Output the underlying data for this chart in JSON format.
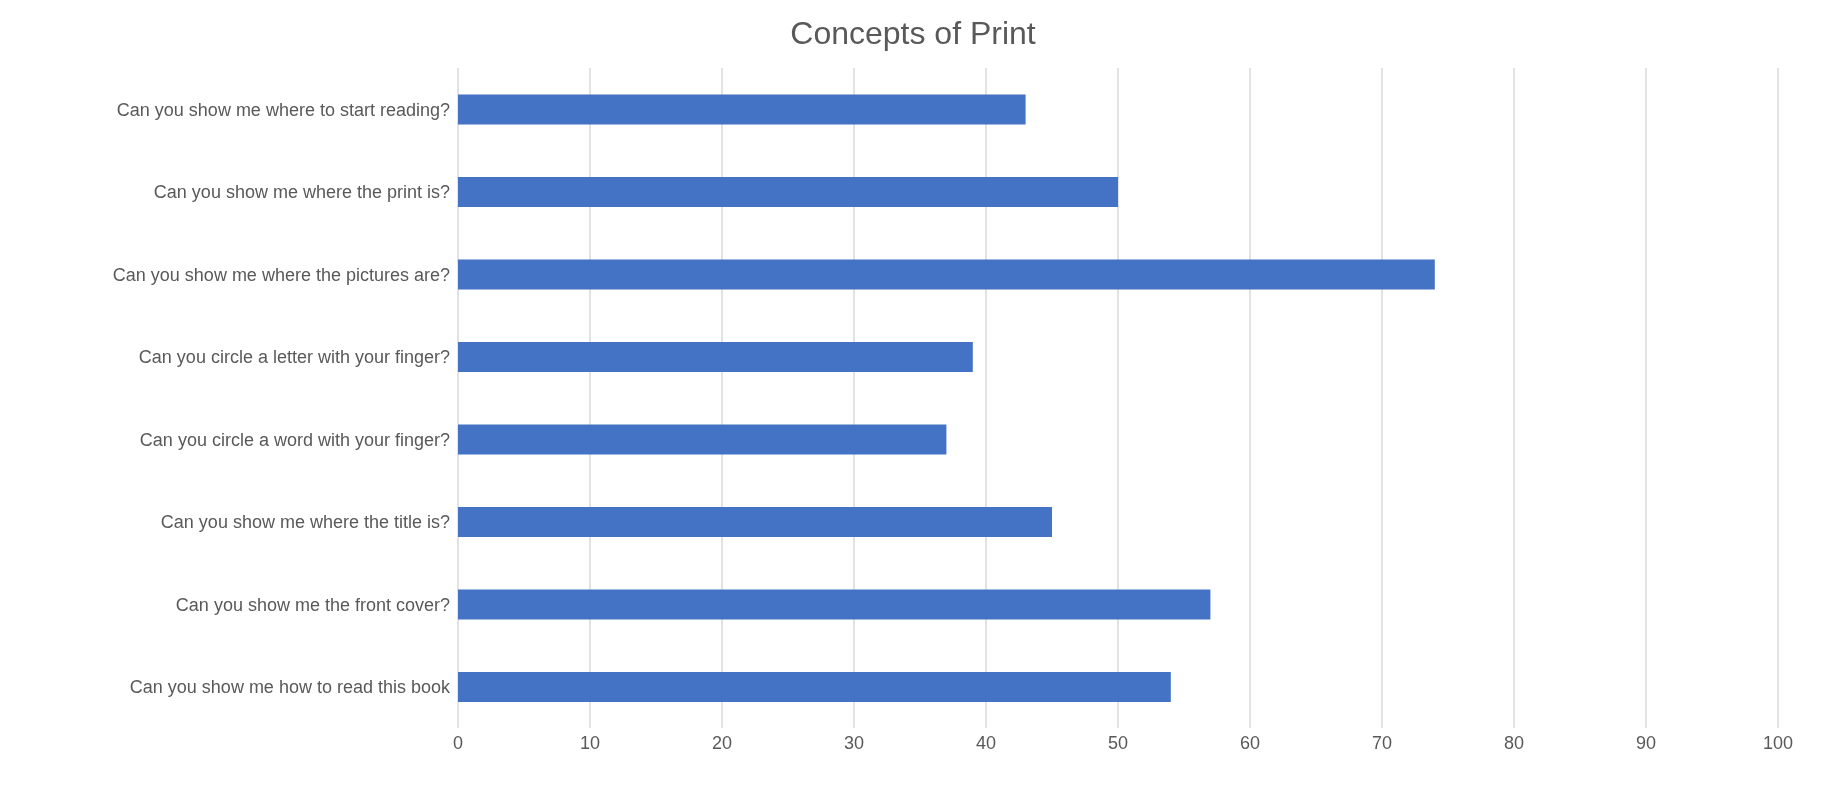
{
  "chart_data": {
    "type": "bar",
    "orientation": "horizontal",
    "title": "Concepts of Print",
    "categories": [
      "Can you show me where to start reading?",
      "Can you show me where the print is?",
      "Can you show me where the pictures are?",
      "Can you circle a letter with your finger?",
      "Can you circle a word with your finger?",
      "Can you show me where the title is?",
      "Can you show me the front cover?",
      "Can you show me how to read this book"
    ],
    "values": [
      43,
      50,
      74,
      39,
      37,
      45,
      57,
      54
    ],
    "color": "#4472c4",
    "xlim": [
      0,
      100
    ],
    "xticks": [
      0,
      10,
      20,
      30,
      40,
      50,
      60,
      70,
      80,
      90,
      100
    ],
    "grid": "x"
  }
}
